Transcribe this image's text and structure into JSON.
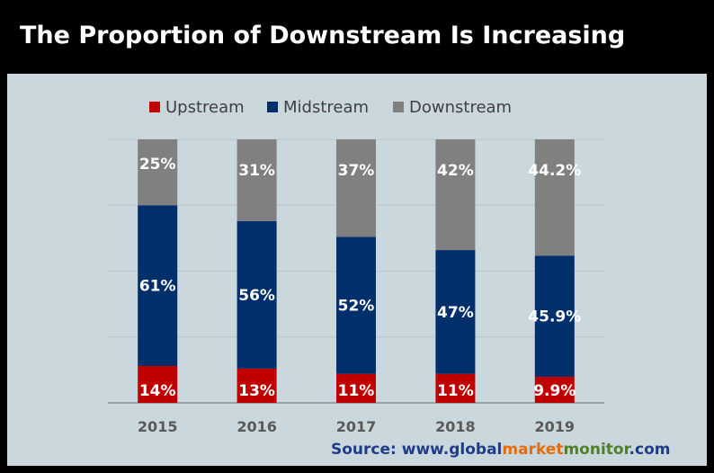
{
  "title": "The Proportion of Downstream Is Increasing",
  "source": {
    "prefix": "Source: www.",
    "part1": "global",
    "part2": "market",
    "part3": "monitor",
    "suffix": ".com",
    "colors": {
      "base": "#1f3c88",
      "global": "#1f3c88",
      "market": "#e46c0a",
      "monitor": "#4f7f2b"
    }
  },
  "colors": {
    "Upstream": "#c00000",
    "Midstream": "#002f6c",
    "Downstream": "#808080",
    "background": "#cad7dd"
  },
  "chart_data": {
    "type": "bar",
    "stacked": true,
    "categories": [
      "2015",
      "2016",
      "2017",
      "2018",
      "2019"
    ],
    "series": [
      {
        "name": "Upstream",
        "values": [
          14,
          13,
          11,
          11,
          9.9
        ],
        "labels": [
          "14%",
          "13%",
          "11%",
          "11%",
          "9.9%"
        ]
      },
      {
        "name": "Midstream",
        "values": [
          61,
          56,
          52,
          47,
          45.9
        ],
        "labels": [
          "61%",
          "56%",
          "52%",
          "47%",
          "45.9%"
        ]
      },
      {
        "name": "Downstream",
        "values": [
          25,
          31,
          37,
          42,
          44.2
        ],
        "labels": [
          "25%",
          "31%",
          "37%",
          "42%",
          "44.2%"
        ]
      }
    ],
    "ylim": [
      0,
      100
    ],
    "grid": true,
    "legend": "top"
  }
}
